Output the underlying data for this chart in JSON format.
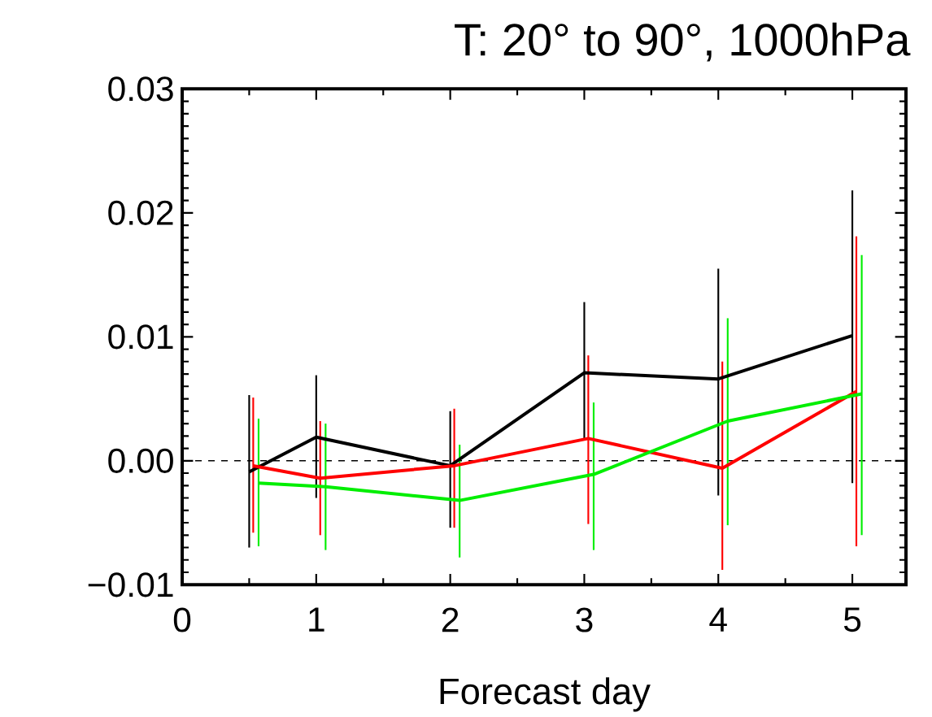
{
  "chart_data": {
    "type": "line",
    "title": "T: 20° to 90°, 1000hPa",
    "xlabel": "Forecast day",
    "xlim": [
      0,
      5.4
    ],
    "xticks": [
      0,
      1,
      2,
      3,
      4,
      5
    ],
    "ylim": [
      -0.01,
      0.03
    ],
    "yticks": [
      {
        "value": -0.01,
        "label": "−0.01"
      },
      {
        "value": 0,
        "label": "0.00"
      },
      {
        "value": 0.01,
        "label": "0.01"
      },
      {
        "value": 0.02,
        "label": "0.02"
      },
      {
        "value": 0.03,
        "label": "0.03"
      }
    ],
    "series": [
      {
        "color": "#000000",
        "x": [
          0.5,
          1,
          2,
          3,
          4,
          5
        ],
        "values": [
          -0.0009,
          0.0019,
          -0.0004,
          0.0071,
          0.0066,
          0.0101
        ],
        "errors": [
          [
            -0.007,
            0.0053
          ],
          [
            -0.003,
            0.0069
          ],
          [
            -0.0054,
            0.004
          ],
          [
            0.0017,
            0.0128
          ],
          [
            -0.0028,
            0.0155
          ],
          [
            -0.0018,
            0.0218
          ]
        ]
      },
      {
        "color": "#ff0000",
        "x": [
          0.53,
          1.03,
          2.03,
          3.03,
          4.03,
          5.03
        ],
        "values": [
          -0.0004,
          -0.0014,
          -0.0004,
          0.0018,
          -0.0006,
          0.0056
        ],
        "errors": [
          [
            -0.0058,
            0.0051
          ],
          [
            -0.006,
            0.0032
          ],
          [
            -0.0054,
            0.0042
          ],
          [
            -0.0051,
            0.0085
          ],
          [
            -0.0088,
            0.008
          ],
          [
            -0.0069,
            0.0181
          ]
        ]
      },
      {
        "color": "#00ee00",
        "x": [
          0.57,
          1.07,
          2.07,
          3.07,
          4.07,
          5.07
        ],
        "values": [
          -0.0018,
          -0.0021,
          -0.0032,
          -0.0011,
          0.0032,
          0.0054
        ],
        "errors": [
          [
            -0.0069,
            0.0034
          ],
          [
            -0.0072,
            0.003
          ],
          [
            -0.0078,
            0.0013
          ],
          [
            -0.0072,
            0.0047
          ],
          [
            -0.0052,
            0.0115
          ],
          [
            -0.006,
            0.0166
          ]
        ]
      }
    ],
    "ref_lines": [
      {
        "axis": "y",
        "value": 0,
        "line_style": "dashed"
      }
    ],
    "marker": "none",
    "line_style": "solid"
  }
}
